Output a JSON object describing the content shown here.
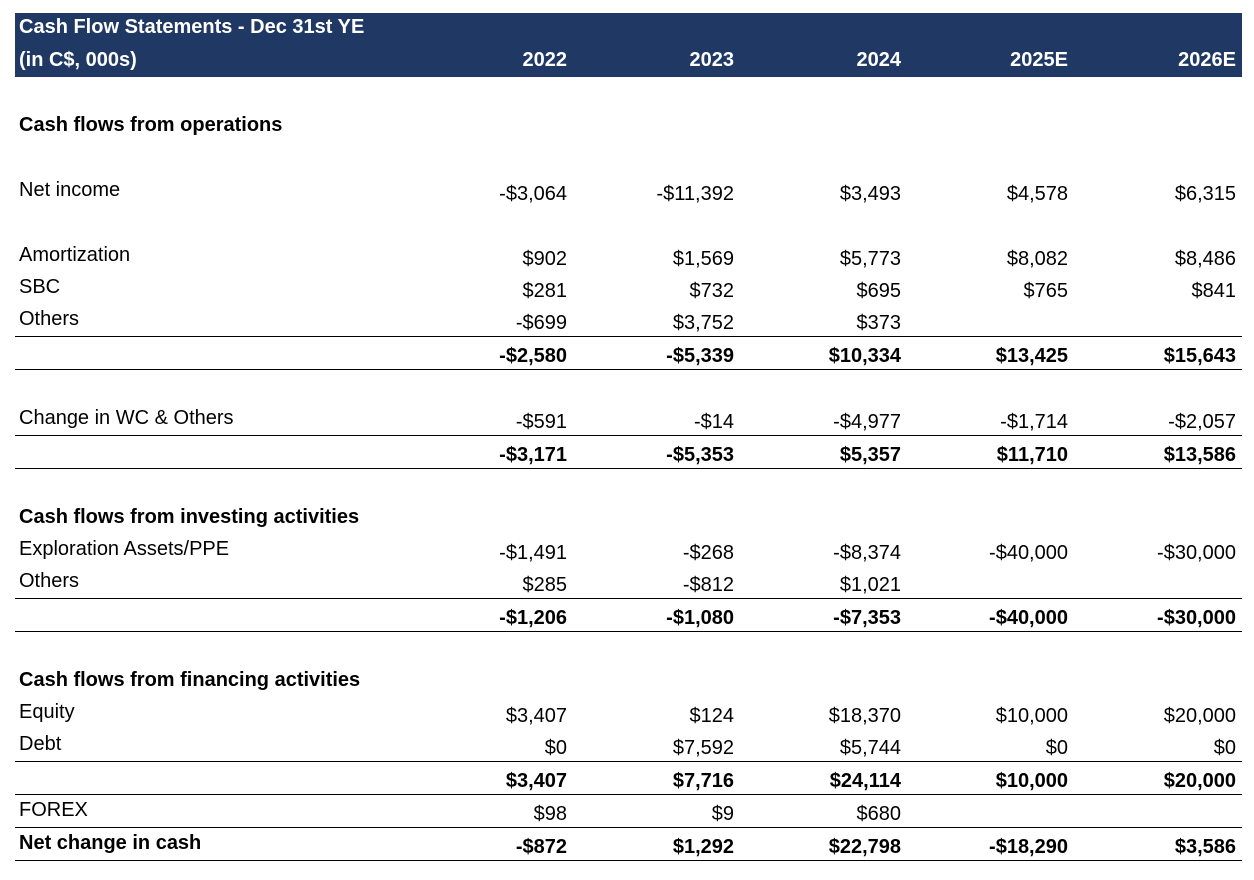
{
  "header": {
    "title": "Cash Flow Statements - Dec 31st YE",
    "units": "(in C$, 000s)",
    "years": [
      "2022",
      "2023",
      "2024",
      "2025E",
      "2026E"
    ]
  },
  "operations": {
    "title": "Cash flows from operations",
    "net_income": {
      "label": "Net income",
      "values": [
        "-$3,064",
        "-$11,392",
        "$3,493",
        "$4,578",
        "$6,315"
      ]
    },
    "amortization": {
      "label": "Amortization",
      "values": [
        "$902",
        "$1,569",
        "$5,773",
        "$8,082",
        "$8,486"
      ]
    },
    "sbc": {
      "label": "SBC",
      "values": [
        "$281",
        "$732",
        "$695",
        "$765",
        "$841"
      ]
    },
    "others": {
      "label": "Others",
      "values": [
        "-$699",
        "$3,752",
        "$373",
        "",
        ""
      ]
    },
    "subtotal": {
      "values": [
        "-$2,580",
        "-$5,339",
        "$10,334",
        "$13,425",
        "$15,643"
      ]
    },
    "change_wc": {
      "label": "Change in WC & Others",
      "values": [
        "-$591",
        "-$14",
        "-$4,977",
        "-$1,714",
        "-$2,057"
      ]
    },
    "total": {
      "values": [
        "-$3,171",
        "-$5,353",
        "$5,357",
        "$11,710",
        "$13,586"
      ]
    }
  },
  "investing": {
    "title": "Cash flows from investing activities",
    "exploration": {
      "label": "Exploration Assets/PPE",
      "values": [
        "-$1,491",
        "-$268",
        "-$8,374",
        "-$40,000",
        "-$30,000"
      ]
    },
    "others": {
      "label": "Others",
      "values": [
        "$285",
        "-$812",
        "$1,021",
        "",
        ""
      ]
    },
    "total": {
      "values": [
        "-$1,206",
        "-$1,080",
        "-$7,353",
        "-$40,000",
        "-$30,000"
      ]
    }
  },
  "financing": {
    "title": "Cash flows from financing activities",
    "equity": {
      "label": "Equity",
      "values": [
        "$3,407",
        "$124",
        "$18,370",
        "$10,000",
        "$20,000"
      ]
    },
    "debt": {
      "label": "Debt",
      "values": [
        "$0",
        "$7,592",
        "$5,744",
        "$0",
        "$0"
      ]
    },
    "total": {
      "values": [
        "$3,407",
        "$7,716",
        "$24,114",
        "$10,000",
        "$20,000"
      ]
    }
  },
  "forex": {
    "label": "FOREX",
    "values": [
      "$98",
      "$9",
      "$680",
      "",
      ""
    ]
  },
  "net_change": {
    "label": "Net change in cash",
    "values": [
      "-$872",
      "$1,292",
      "$22,798",
      "-$18,290",
      "$3,586"
    ]
  }
}
